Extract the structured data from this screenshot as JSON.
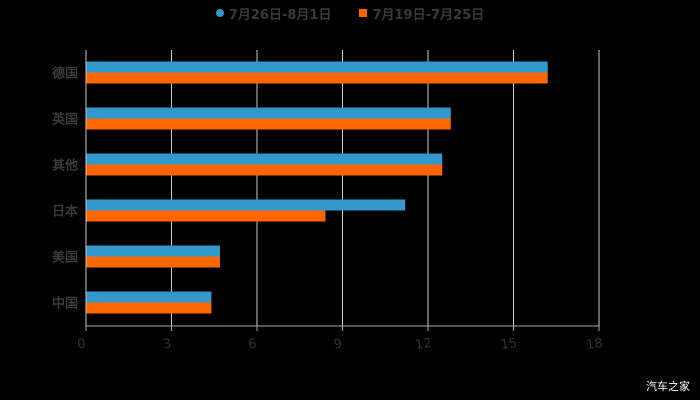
{
  "legend": [
    {
      "label": "7月26日-8月1日",
      "color": "#3399cc",
      "marker": "circle"
    },
    {
      "label": "7月19日-7月25日",
      "color": "#ff6600",
      "marker": "square"
    }
  ],
  "watermark": "汽车之家",
  "chart_data": {
    "type": "bar",
    "orientation": "horizontal",
    "title": "",
    "xlabel": "",
    "ylabel": "",
    "categories": [
      "德国",
      "英国",
      "其他",
      "日本",
      "美国",
      "中国"
    ],
    "series": [
      {
        "name": "7月26日-8月1日",
        "color": "#3399cc",
        "values": [
          16.2,
          12.8,
          12.5,
          11.2,
          4.7,
          4.4
        ]
      },
      {
        "name": "7月19日-7月25日",
        "color": "#ff6600",
        "values": [
          16.2,
          12.8,
          12.5,
          8.4,
          4.7,
          4.4
        ]
      }
    ],
    "xlim": [
      0,
      18
    ],
    "xticks": [
      0,
      3,
      6,
      9,
      12,
      15,
      18
    ],
    "grid": "vertical",
    "legend_position": "top"
  }
}
